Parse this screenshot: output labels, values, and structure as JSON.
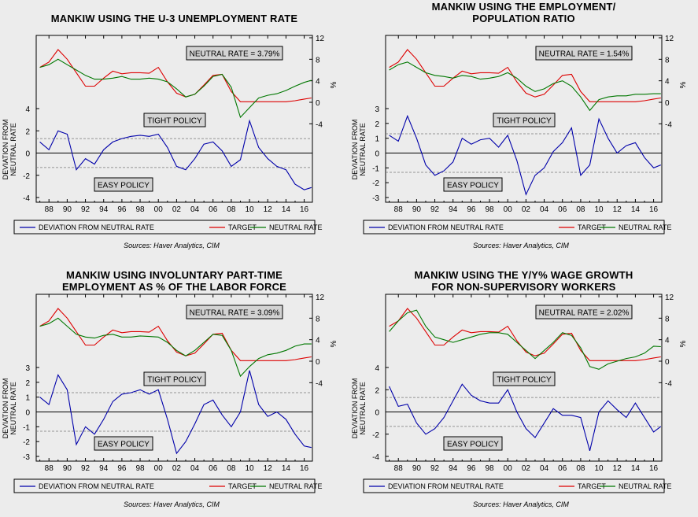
{
  "source_note": "Sources:  Haver Analytics, CIM",
  "legend": {
    "deviation": "DEVIATION FROM NEUTRAL RATE",
    "target": "TARGET",
    "neutral": "NEUTRAL RATE"
  },
  "tight_label": "TIGHT POLICY",
  "easy_label": "EASY POLICY",
  "left_axis_label_1": "DEVIATION FROM",
  "left_axis_label_2": "NEUTRAL RATE",
  "right_axis_label": "%",
  "x_ticks": [
    "88",
    "90",
    "92",
    "94",
    "96",
    "98",
    "00",
    "02",
    "04",
    "06",
    "08",
    "10",
    "12",
    "14",
    "16"
  ],
  "top_ticks": [
    "12",
    "8",
    "4",
    "0",
    "-4"
  ],
  "colors": {
    "deviation": "#0000aa",
    "target": "#dd0000",
    "neutral": "#007700"
  },
  "chart_data": [
    {
      "type": "line",
      "title_lines": [
        "MANKIW USING THE U-3 UNEMPLOYMENT RATE"
      ],
      "neutral_label": "NEUTRAL RATE = 3.79%",
      "bottom_ticks": [
        "4",
        "2",
        "0",
        "-2",
        "-4"
      ],
      "bottom_ylim": [
        -4,
        4
      ],
      "top_ylim": [
        -4,
        12
      ],
      "dashed_levels": [
        1.3,
        -1.3
      ],
      "x": [
        1987,
        1988,
        1989,
        1990,
        1991,
        1992,
        1993,
        1994,
        1995,
        1996,
        1997,
        1998,
        1999,
        2000,
        2001,
        2002,
        2003,
        2004,
        2005,
        2006,
        2007,
        2008,
        2009,
        2010,
        2011,
        2012,
        2013,
        2014,
        2015,
        2016,
        2016.8
      ],
      "target": [
        6.5,
        7.5,
        9.8,
        8.0,
        5.5,
        3.0,
        3.0,
        4.5,
        5.8,
        5.3,
        5.5,
        5.5,
        5.4,
        6.5,
        3.8,
        1.7,
        1.0,
        1.5,
        3.2,
        5.0,
        5.2,
        2.0,
        0.1,
        0.1,
        0.1,
        0.1,
        0.1,
        0.1,
        0.3,
        0.6,
        0.8
      ],
      "neutral": [
        6.5,
        7.0,
        8.0,
        7.0,
        6.0,
        5.0,
        4.3,
        4.3,
        4.5,
        4.8,
        4.3,
        4.3,
        4.5,
        4.3,
        3.8,
        2.5,
        1.0,
        1.5,
        3.0,
        4.8,
        5.2,
        2.8,
        -2.8,
        -1.0,
        0.8,
        1.3,
        1.6,
        2.2,
        3.0,
        3.7,
        4.1
      ],
      "deviation": [
        1.0,
        0.3,
        2.0,
        1.7,
        -1.5,
        -0.5,
        -1.0,
        0.3,
        1.0,
        1.3,
        1.5,
        1.6,
        1.5,
        1.7,
        0.5,
        -1.2,
        -1.5,
        -0.5,
        0.8,
        1.0,
        0.2,
        -1.2,
        -0.6,
        2.9,
        0.5,
        -0.5,
        -1.2,
        -1.5,
        -2.8,
        -3.3,
        -3.1
      ]
    },
    {
      "type": "line",
      "title_lines": [
        "MANKIW USING THE EMPLOYMENT/",
        "POPULATION RATIO"
      ],
      "neutral_label": "NEUTRAL RATE = 1.54%",
      "bottom_ticks": [
        "3",
        "2",
        "1",
        "0",
        "-1",
        "-2",
        "-3"
      ],
      "bottom_ylim": [
        -3,
        3
      ],
      "top_ylim": [
        -4,
        12
      ],
      "dashed_levels": [
        1.3,
        -1.3
      ],
      "x": [
        1987,
        1988,
        1989,
        1990,
        1991,
        1992,
        1993,
        1994,
        1995,
        1996,
        1997,
        1998,
        1999,
        2000,
        2001,
        2002,
        2003,
        2004,
        2005,
        2006,
        2007,
        2008,
        2009,
        2010,
        2011,
        2012,
        2013,
        2014,
        2015,
        2016,
        2016.8
      ],
      "target": [
        6.5,
        7.5,
        9.8,
        8.0,
        5.5,
        3.0,
        3.0,
        4.5,
        5.8,
        5.3,
        5.5,
        5.5,
        5.4,
        6.5,
        3.8,
        1.7,
        1.0,
        1.5,
        3.2,
        5.0,
        5.2,
        2.0,
        0.1,
        0.1,
        0.1,
        0.1,
        0.1,
        0.1,
        0.3,
        0.6,
        0.8
      ],
      "neutral": [
        6.0,
        7.0,
        7.5,
        6.5,
        5.5,
        5.0,
        4.8,
        4.5,
        5.0,
        4.8,
        4.3,
        4.5,
        4.8,
        5.5,
        4.5,
        3.0,
        2.0,
        2.5,
        3.5,
        4.0,
        3.0,
        1.0,
        -1.5,
        0.5,
        1.0,
        1.2,
        1.2,
        1.5,
        1.5,
        1.6,
        1.6
      ],
      "deviation": [
        1.2,
        0.8,
        2.5,
        1.0,
        -0.8,
        -1.5,
        -1.2,
        -0.6,
        1.0,
        0.6,
        0.9,
        1.0,
        0.4,
        1.2,
        -0.5,
        -2.8,
        -1.5,
        -1.0,
        0.1,
        0.7,
        1.7,
        -1.5,
        -0.8,
        2.3,
        1.0,
        0.0,
        0.5,
        0.7,
        -0.3,
        -1.0,
        -0.8
      ]
    },
    {
      "type": "line",
      "title_lines": [
        "MANKIW USING INVOLUNTARY PART-TIME",
        "EMPLOYMENT AS % OF THE LABOR FORCE"
      ],
      "neutral_label": "NEUTRAL RATE = 3.09%",
      "bottom_ticks": [
        "3",
        "2",
        "1",
        "0",
        "-1",
        "-2",
        "-3"
      ],
      "bottom_ylim": [
        -3,
        3
      ],
      "top_ylim": [
        -4,
        12
      ],
      "dashed_levels": [
        1.3,
        -1.3
      ],
      "x": [
        1987,
        1988,
        1989,
        1990,
        1991,
        1992,
        1993,
        1994,
        1995,
        1996,
        1997,
        1998,
        1999,
        2000,
        2001,
        2002,
        2003,
        2004,
        2005,
        2006,
        2007,
        2008,
        2009,
        2010,
        2011,
        2012,
        2013,
        2014,
        2015,
        2016,
        2016.8
      ],
      "target": [
        6.5,
        7.5,
        9.8,
        8.0,
        5.5,
        3.0,
        3.0,
        4.5,
        5.8,
        5.3,
        5.5,
        5.5,
        5.4,
        6.5,
        3.8,
        1.7,
        1.0,
        1.5,
        3.2,
        5.0,
        5.2,
        2.0,
        0.1,
        0.1,
        0.1,
        0.1,
        0.1,
        0.1,
        0.3,
        0.6,
        0.8
      ],
      "neutral": [
        6.5,
        7.0,
        8.0,
        6.5,
        5.0,
        4.5,
        4.3,
        4.8,
        5.0,
        4.5,
        4.5,
        4.7,
        4.6,
        4.5,
        3.5,
        2.0,
        1.0,
        2.0,
        3.5,
        5.0,
        4.8,
        2.0,
        -2.8,
        -1.0,
        0.5,
        1.2,
        1.5,
        2.0,
        2.8,
        3.2,
        3.2
      ],
      "deviation": [
        1.0,
        0.5,
        2.5,
        1.5,
        -2.2,
        -1.0,
        -1.5,
        -0.5,
        0.7,
        1.2,
        1.3,
        1.5,
        1.2,
        1.5,
        -0.5,
        -2.8,
        -2.0,
        -0.8,
        0.5,
        0.8,
        -0.2,
        -1.0,
        0.0,
        2.8,
        0.5,
        -0.3,
        0.0,
        -0.5,
        -1.5,
        -2.3,
        -2.4
      ]
    },
    {
      "type": "line",
      "title_lines": [
        "MANKIW USING THE Y/Y% WAGE GROWTH",
        "FOR NON-SUPERVISORY WORKERS"
      ],
      "neutral_label": "NEUTRAL RATE = 2.02%",
      "bottom_ticks": [
        "4",
        "2",
        "0",
        "-2",
        "-4"
      ],
      "bottom_ylim": [
        -4,
        4
      ],
      "top_ylim": [
        -4,
        12
      ],
      "dashed_levels": [
        1.3,
        -1.3
      ],
      "x": [
        1987,
        1988,
        1989,
        1990,
        1991,
        1992,
        1993,
        1994,
        1995,
        1996,
        1997,
        1998,
        1999,
        2000,
        2001,
        2002,
        2003,
        2004,
        2005,
        2006,
        2007,
        2008,
        2009,
        2010,
        2011,
        2012,
        2013,
        2014,
        2015,
        2016,
        2016.8
      ],
      "target": [
        6.5,
        7.5,
        9.8,
        8.0,
        5.5,
        3.0,
        3.0,
        4.5,
        5.8,
        5.3,
        5.5,
        5.5,
        5.4,
        6.5,
        3.8,
        1.7,
        1.0,
        1.5,
        3.2,
        5.0,
        5.2,
        2.0,
        0.1,
        0.1,
        0.1,
        0.1,
        0.1,
        0.1,
        0.3,
        0.6,
        0.8
      ],
      "neutral": [
        5.5,
        7.5,
        9.0,
        9.5,
        6.5,
        4.5,
        4.0,
        3.5,
        4.0,
        4.5,
        5.0,
        5.3,
        5.3,
        5.0,
        3.5,
        2.0,
        0.5,
        2.0,
        3.5,
        5.3,
        4.8,
        2.5,
        -1.0,
        -1.5,
        -0.5,
        0.0,
        0.5,
        0.8,
        1.5,
        2.8,
        2.7
      ],
      "deviation": [
        2.3,
        0.5,
        0.7,
        -1.0,
        -2.0,
        -1.5,
        -0.5,
        1.0,
        2.5,
        1.5,
        1.0,
        0.8,
        0.8,
        2.0,
        0.0,
        -1.5,
        -2.3,
        -1.0,
        0.3,
        -0.3,
        -0.3,
        -0.5,
        -3.5,
        0.0,
        1.0,
        0.2,
        -0.5,
        0.8,
        -0.5,
        -1.8,
        -1.3
      ]
    }
  ]
}
